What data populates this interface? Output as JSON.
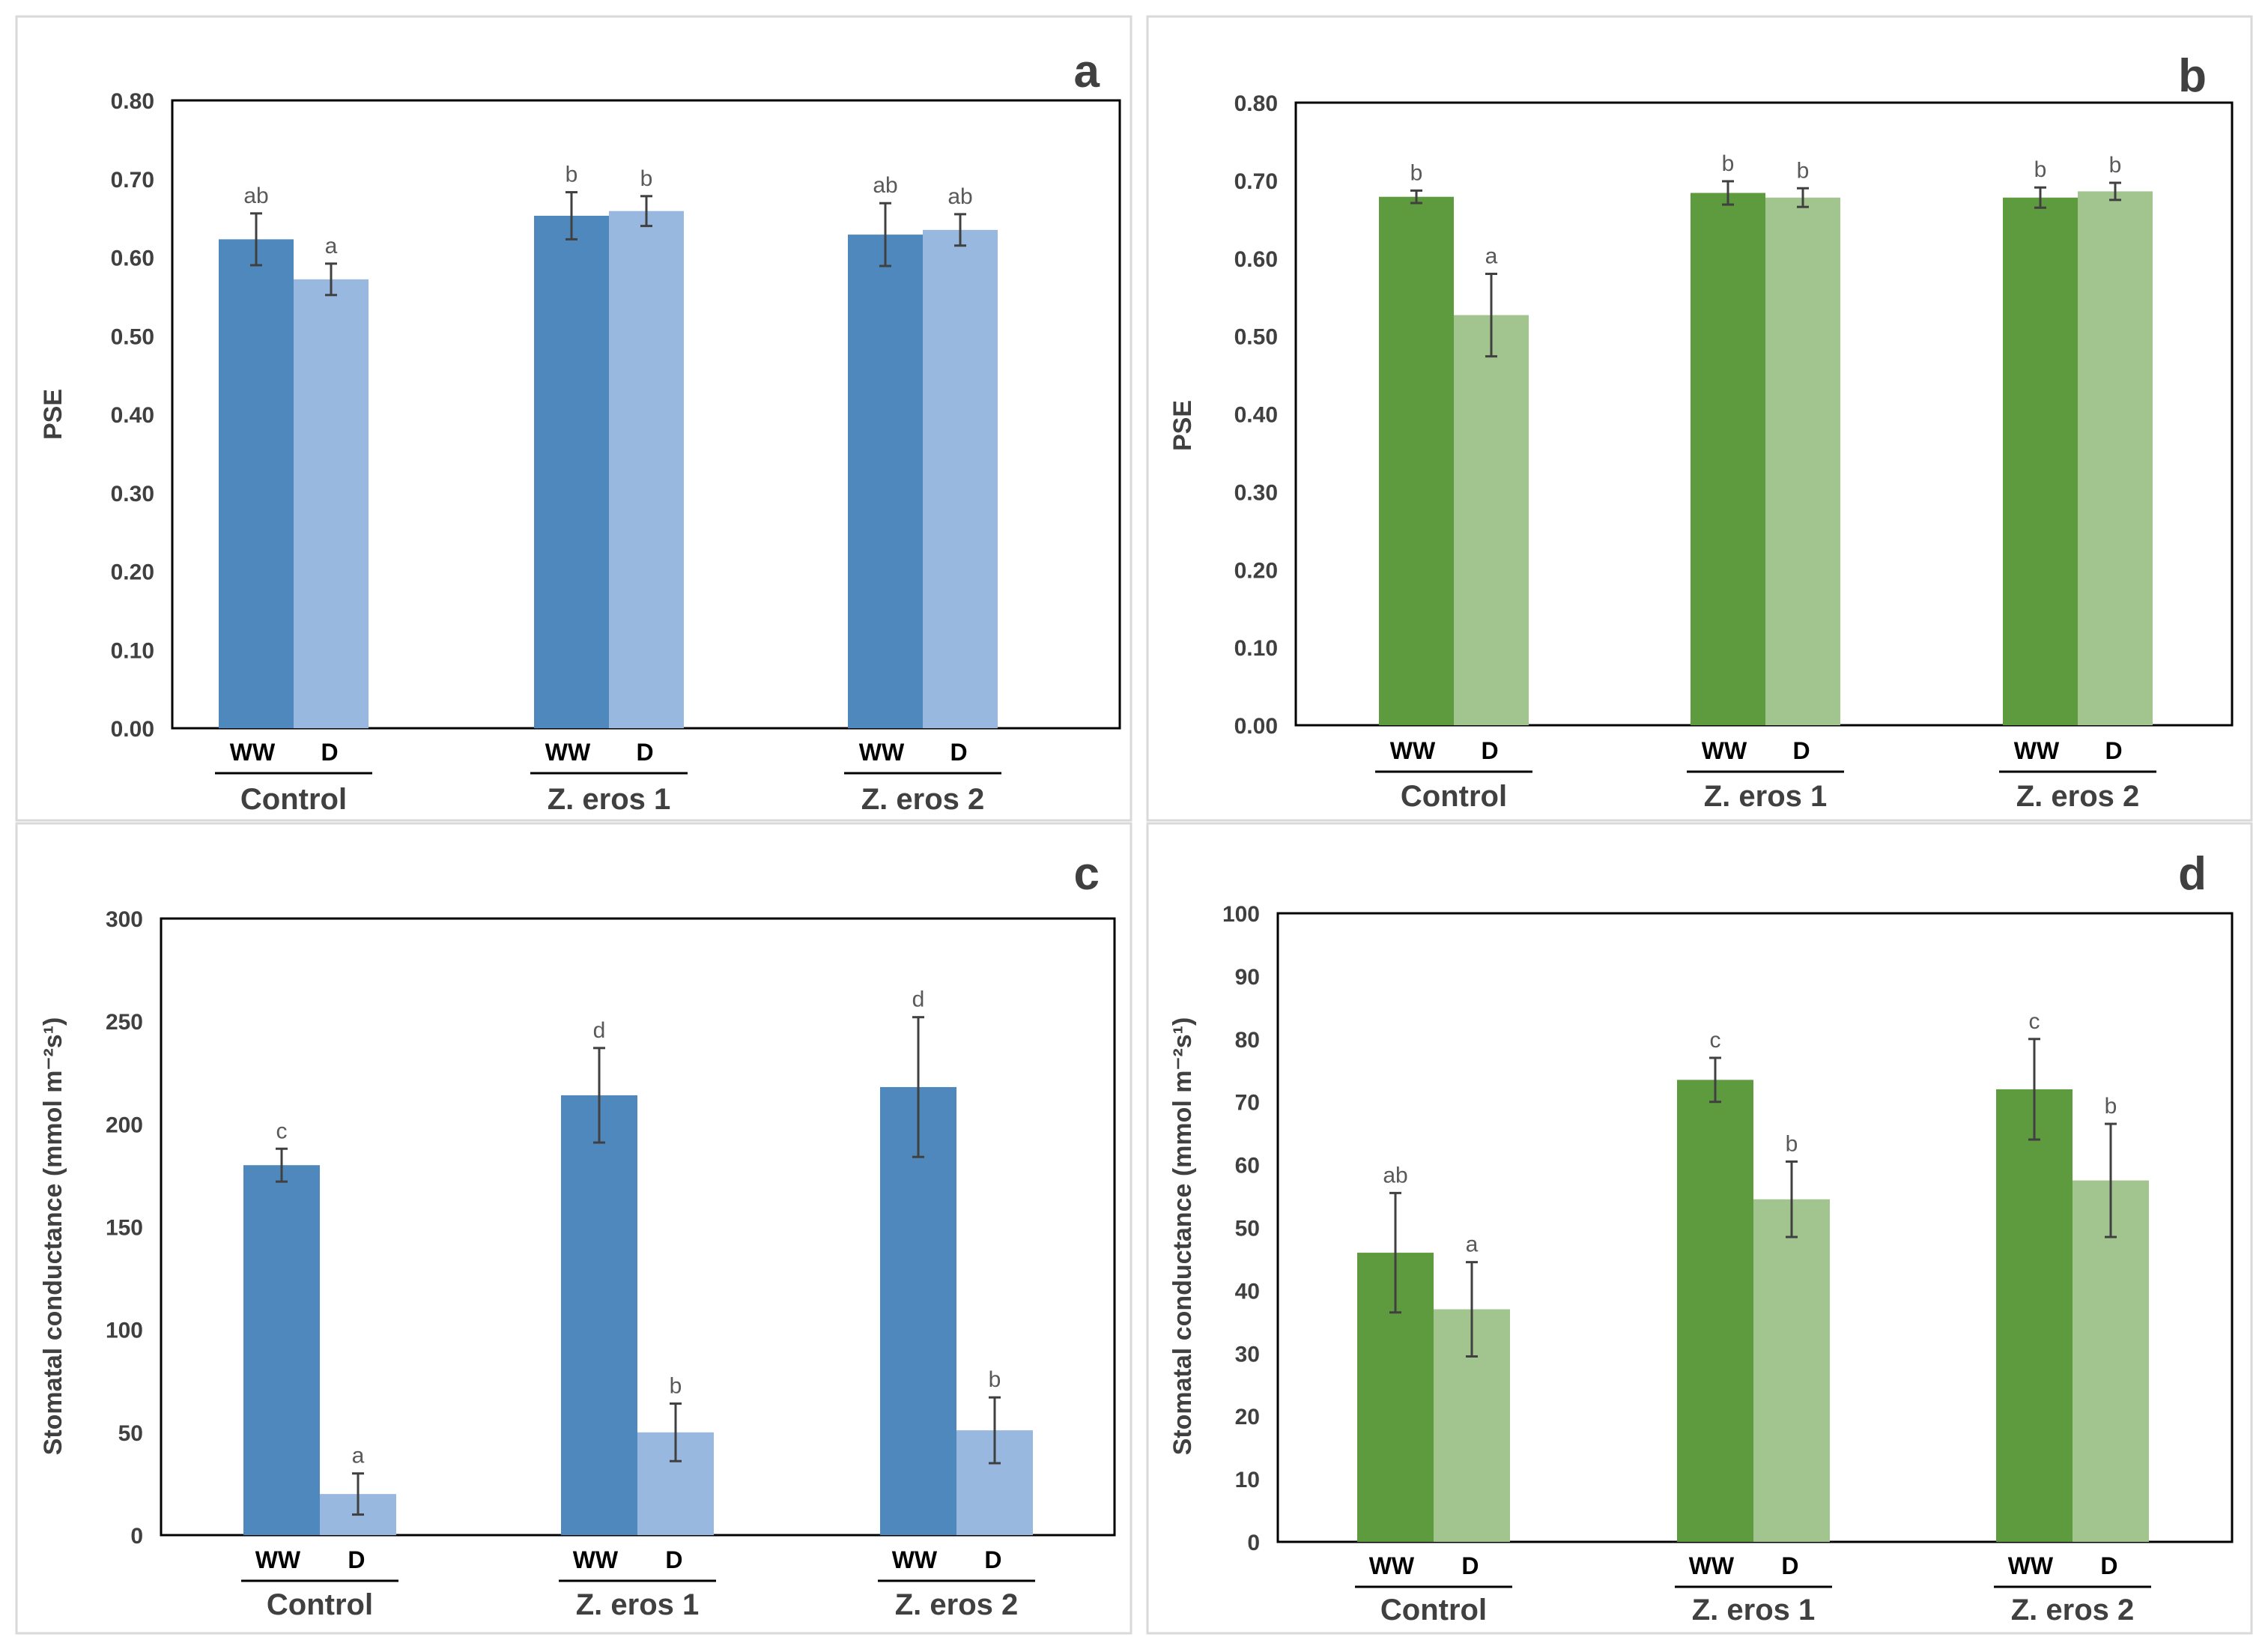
{
  "chart_data": [
    {
      "panel": "a",
      "type": "bar",
      "ylabel": "PSE",
      "ylim": [
        0,
        0.8
      ],
      "yticks": [
        "0.00",
        "0.10",
        "0.20",
        "0.30",
        "0.40",
        "0.50",
        "0.60",
        "0.70",
        "0.80"
      ],
      "yticks_values": [
        0,
        0.1,
        0.2,
        0.3,
        0.4,
        0.5,
        0.6,
        0.7,
        0.8
      ],
      "groups": [
        "Control",
        "Z. eros 1",
        "Z. eros 2"
      ],
      "conditions": [
        "WW",
        "D"
      ],
      "colors": {
        "WW": "#4e88bd",
        "D": "#98b8e0"
      },
      "series": [
        {
          "name": "WW",
          "values": [
            0.623,
            0.653,
            0.629
          ],
          "errors": [
            0.033,
            0.03,
            0.04
          ],
          "letters": [
            "ab",
            "b",
            "ab"
          ]
        },
        {
          "name": "D",
          "values": [
            0.572,
            0.659,
            0.635
          ],
          "errors": [
            0.02,
            0.019,
            0.02
          ],
          "letters": [
            "a",
            "b",
            "ab"
          ]
        }
      ]
    },
    {
      "panel": "b",
      "type": "bar",
      "ylabel": "PSE",
      "ylim": [
        0,
        0.8
      ],
      "yticks": [
        "0.00",
        "0.10",
        "0.20",
        "0.30",
        "0.40",
        "0.50",
        "0.60",
        "0.70",
        "0.80"
      ],
      "yticks_values": [
        0,
        0.1,
        0.2,
        0.3,
        0.4,
        0.5,
        0.6,
        0.7,
        0.8
      ],
      "groups": [
        "Control",
        "Z. eros 1",
        "Z. eros 2"
      ],
      "conditions": [
        "WW",
        "D"
      ],
      "colors": {
        "WW": "#5e9a3e",
        "D": "#a2c48e"
      },
      "series": [
        {
          "name": "WW",
          "values": [
            0.679,
            0.684,
            0.678
          ],
          "errors": [
            0.008,
            0.015,
            0.013
          ],
          "letters": [
            "b",
            "b",
            "b"
          ]
        },
        {
          "name": "D",
          "values": [
            0.527,
            0.678,
            0.686
          ],
          "errors": [
            0.053,
            0.012,
            0.011
          ],
          "letters": [
            "a",
            "b",
            "b"
          ]
        }
      ]
    },
    {
      "panel": "c",
      "type": "bar",
      "ylabel": "Stomatal conductance (mmol m⁻²s¹)",
      "ylim": [
        0,
        300
      ],
      "yticks": [
        "0",
        "50",
        "100",
        "150",
        "200",
        "250",
        "300"
      ],
      "yticks_values": [
        0,
        50,
        100,
        150,
        200,
        250,
        300
      ],
      "groups": [
        "Control",
        "Z. eros 1",
        "Z. eros 2"
      ],
      "conditions": [
        "WW",
        "D"
      ],
      "colors": {
        "WW": "#4e88bd",
        "D": "#98b8e0"
      },
      "series": [
        {
          "name": "WW",
          "values": [
            180,
            214,
            218
          ],
          "errors": [
            8,
            23,
            34
          ],
          "letters": [
            "c",
            "d",
            "d"
          ]
        },
        {
          "name": "D",
          "values": [
            20,
            50,
            51
          ],
          "errors": [
            10,
            14,
            16
          ],
          "letters": [
            "a",
            "b",
            "b"
          ]
        }
      ]
    },
    {
      "panel": "d",
      "type": "bar",
      "ylabel": "Stomatal conductance (mmol m⁻²s¹)",
      "ylim": [
        0,
        100
      ],
      "yticks": [
        "0",
        "10",
        "20",
        "30",
        "40",
        "50",
        "60",
        "70",
        "80",
        "90",
        "100"
      ],
      "yticks_values": [
        0,
        10,
        20,
        30,
        40,
        50,
        60,
        70,
        80,
        90,
        100
      ],
      "groups": [
        "Control",
        "Z. eros 1",
        "Z. eros 2"
      ],
      "conditions": [
        "WW",
        "D"
      ],
      "colors": {
        "WW": "#5e9a3e",
        "D": "#a2c48e"
      },
      "series": [
        {
          "name": "WW",
          "values": [
            46,
            73.5,
            72
          ],
          "errors": [
            9.5,
            3.5,
            8
          ],
          "letters": [
            "ab",
            "c",
            "c"
          ]
        },
        {
          "name": "D",
          "values": [
            37,
            54.5,
            57.5
          ],
          "errors": [
            7.5,
            6,
            9
          ],
          "letters": [
            "a",
            "b",
            "b"
          ]
        }
      ]
    }
  ]
}
